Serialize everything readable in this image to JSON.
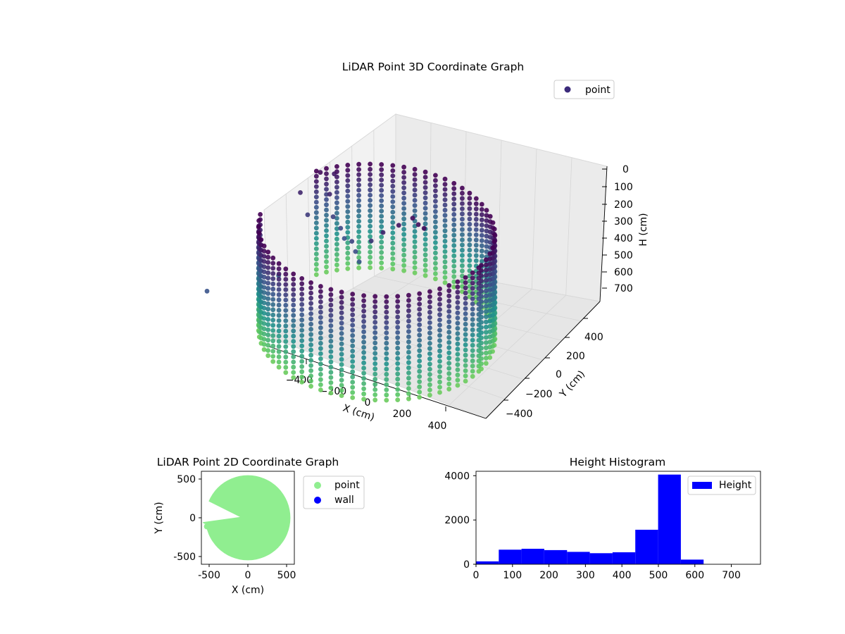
{
  "chart_data": [
    {
      "type": "scatter",
      "projection": "3d",
      "title": "LiDAR Point 3D Coordinate Graph",
      "xlabel": "X (cm)",
      "ylabel": "Y (cm)",
      "zlabel": "H (cm)",
      "xlim": [
        -560,
        560
      ],
      "ylim": [
        -560,
        560
      ],
      "zlim": [
        790,
        0
      ],
      "z_inverted": true,
      "x_ticks": [
        "−400",
        "−200",
        "0",
        "200",
        "400"
      ],
      "y_ticks": [
        "−400",
        "−200",
        "0",
        "200",
        "400"
      ],
      "z_ticks": [
        "0",
        "100",
        "200",
        "300",
        "400",
        "500",
        "600",
        "700"
      ],
      "colormap": "viridis",
      "colormap_stops": [
        "#440154",
        "#3b528b",
        "#21918c",
        "#5ec962",
        "#fde725"
      ],
      "grid": true,
      "legend": {
        "placement": "upper-right",
        "entries": [
          "point"
        ]
      },
      "series": [
        {
          "name": "point",
          "marker_color": "#3b2a7a",
          "cylinder_wall": {
            "center": [
              0,
              0
            ],
            "radius": 540,
            "h_range": [
              0,
              600
            ]
          },
          "points": [
            [
              -420,
              380,
              60
            ],
            [
              -460,
              320,
              30
            ],
            [
              -380,
              260,
              90
            ],
            [
              -320,
              180,
              150
            ],
            [
              -260,
              140,
              170
            ],
            [
              -220,
              100,
              190
            ],
            [
              -160,
              60,
              160
            ],
            [
              -120,
              20,
              180
            ],
            [
              -80,
              -20,
              200
            ],
            [
              -60,
              60,
              120
            ],
            [
              -20,
              100,
              80
            ],
            [
              40,
              140,
              40
            ],
            [
              80,
              200,
              20
            ],
            [
              120,
              180,
              30
            ],
            [
              160,
              160,
              25
            ],
            [
              -380,
              -240,
              260
            ],
            [
              -420,
              120,
              140
            ],
            [
              -500,
              200,
              90
            ],
            [
              -560,
              -600,
              200
            ]
          ]
        }
      ]
    },
    {
      "type": "scatter",
      "title": "LiDAR Point 2D Coordinate Graph",
      "xlabel": "X (cm)",
      "ylabel": "Y (cm)",
      "xlim": [
        -590,
        590
      ],
      "ylim": [
        -590,
        590
      ],
      "x_ticks": [
        -500,
        0,
        500
      ],
      "y_ticks": [
        -500,
        0,
        500
      ],
      "legend": {
        "placement": "outside-right",
        "entries": [
          "point",
          "wall"
        ]
      },
      "series": [
        {
          "name": "point",
          "color": "#90ee90",
          "points": [
            [
              0,
              0
            ],
            [
              -530,
              140
            ],
            [
              -460,
              80
            ],
            [
              -520,
              -110
            ],
            [
              -420,
              -40
            ],
            [
              -480,
              170
            ],
            [
              -340,
              80
            ],
            [
              -380,
              40
            ],
            [
              -250,
              -20
            ],
            [
              -200,
              10
            ],
            [
              -150,
              40
            ],
            [
              -500,
              -80
            ],
            [
              -540,
              -40
            ]
          ]
        },
        {
          "name": "wall",
          "color": "#0000ff",
          "points": []
        }
      ]
    },
    {
      "type": "bar",
      "title": "Height Histogram",
      "xlabel": "",
      "ylabel": "",
      "xlim": [
        0,
        780
      ],
      "ylim": [
        0,
        4200
      ],
      "x_ticks": [
        0,
        100,
        200,
        300,
        400,
        500,
        600,
        700
      ],
      "y_ticks": [
        0,
        2000,
        4000
      ],
      "legend": {
        "placement": "top-right",
        "entries": [
          "Height"
        ]
      },
      "series": [
        {
          "name": "Height",
          "color": "#0000ff",
          "bin_edges": [
            0,
            62.4,
            124.8,
            187.2,
            249.6,
            312,
            374.4,
            436.8,
            499.2,
            561.6,
            624
          ],
          "values": [
            130,
            660,
            700,
            640,
            560,
            500,
            540,
            1560,
            4050,
            210
          ]
        }
      ]
    }
  ]
}
